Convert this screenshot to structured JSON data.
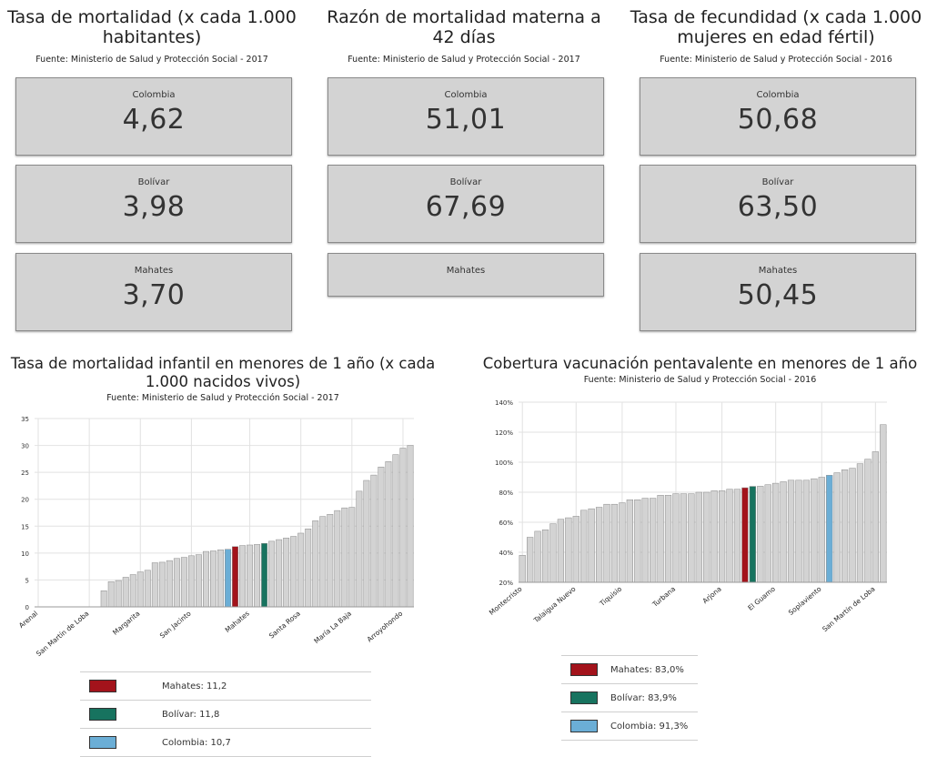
{
  "kpis": [
    {
      "title": "Tasa de mortalidad (x cada 1.000 habitantes)",
      "source": "Fuente: Ministerio de Salud y Protección Social - 2017",
      "items": [
        {
          "label": "Colombia",
          "value": "4,62"
        },
        {
          "label": "Bolívar",
          "value": "3,98"
        },
        {
          "label": "Mahates",
          "value": "3,70"
        }
      ]
    },
    {
      "title": "Razón de mortalidad materna a 42 días",
      "source": "Fuente: Ministerio de Salud y Protección Social - 2017",
      "items": [
        {
          "label": "Colombia",
          "value": "51,01"
        },
        {
          "label": "Bolívar",
          "value": "67,69"
        },
        {
          "label": "Mahates",
          "value": ""
        }
      ]
    },
    {
      "title": "Tasa de fecundidad (x cada 1.000 mujeres en edad fértil)",
      "source": "Fuente: Ministerio de Salud y Protección Social - 2016",
      "items": [
        {
          "label": "Colombia",
          "value": "50,68"
        },
        {
          "label": "Bolívar",
          "value": "63,50"
        },
        {
          "label": "Mahates",
          "value": "50,45"
        }
      ]
    }
  ],
  "colors": {
    "bar": "#d3d3d3",
    "mahates": "#a3131b",
    "bolivar": "#17735f",
    "colombia": "#6baed6",
    "kpi_box": "#d3d3d3"
  },
  "chart_data": [
    {
      "type": "bar",
      "title": "Tasa de mortalidad infantil en menores de 1 año (x cada 1.000 nacidos vivos)",
      "source": "Fuente: Ministerio de Salud y Protección Social - 2017",
      "ylim": [
        0,
        35
      ],
      "yticks": [
        "0",
        "5",
        "10",
        "15",
        "20",
        "25",
        "30",
        "35"
      ],
      "xtick_labels": [
        "Arenal",
        "San Martín de Loba",
        "Margarita",
        "San Jacinto",
        "Mahates",
        "Santa Rosa",
        "María La Baja",
        "Arroyohondo"
      ],
      "values": [
        0,
        0,
        0,
        0,
        0,
        0,
        0,
        0,
        0,
        3.0,
        4.7,
        4.9,
        5.5,
        6.0,
        6.5,
        6.8,
        8.2,
        8.3,
        8.6,
        9.0,
        9.2,
        9.5,
        9.7,
        10.3,
        10.4,
        10.6,
        10.7,
        11.2,
        11.4,
        11.5,
        11.6,
        11.8,
        12.2,
        12.5,
        12.8,
        13.1,
        13.7,
        14.5,
        16.0,
        16.8,
        17.2,
        17.9,
        18.4,
        18.5,
        21.5,
        23.5,
        24.5,
        26.0,
        27.0,
        28.3,
        29.5,
        30.0
      ],
      "highlights": [
        {
          "index": 26,
          "series": "colombia"
        },
        {
          "index": 27,
          "series": "mahates"
        },
        {
          "index": 31,
          "series": "bolivar"
        }
      ],
      "legend": [
        {
          "series": "mahates",
          "label": "Mahates: 11,2"
        },
        {
          "series": "bolivar",
          "label": "Bolívar: 11,8"
        },
        {
          "series": "colombia",
          "label": "Colombia: 10,7"
        }
      ]
    },
    {
      "type": "bar",
      "title": "Cobertura vacunación pentavalente en menores de 1 año",
      "source": "Fuente: Ministerio de Salud y Protección Social - 2016",
      "ylim": [
        20,
        140
      ],
      "yticks": [
        "20%",
        "40%",
        "60%",
        "80%",
        "100%",
        "120%",
        "140%"
      ],
      "xtick_labels": [
        "Montecristo",
        "Talaigua Nuevo",
        "Tiquisio",
        "Turbana",
        "Arjona",
        "El Guamo",
        "Soplaviento",
        "San Martín de Loba"
      ],
      "values": [
        38,
        50,
        54,
        55,
        59,
        62,
        63,
        64,
        68,
        69,
        70,
        72,
        72,
        73,
        75,
        75,
        76,
        76,
        78,
        78,
        79,
        79,
        79,
        80,
        80,
        81,
        81,
        82,
        82,
        83.0,
        83.9,
        84,
        85,
        86,
        87,
        88,
        88,
        88,
        89,
        90,
        91.3,
        93,
        95,
        96,
        99,
        102,
        107,
        125
      ],
      "highlights": [
        {
          "index": 29,
          "series": "mahates"
        },
        {
          "index": 30,
          "series": "bolivar"
        },
        {
          "index": 40,
          "series": "colombia"
        }
      ],
      "legend": [
        {
          "series": "mahates",
          "label": "Mahates: 83,0%"
        },
        {
          "series": "bolivar",
          "label": "Bolívar: 83,9%"
        },
        {
          "series": "colombia",
          "label": "Colombia: 91,3%"
        }
      ]
    }
  ]
}
